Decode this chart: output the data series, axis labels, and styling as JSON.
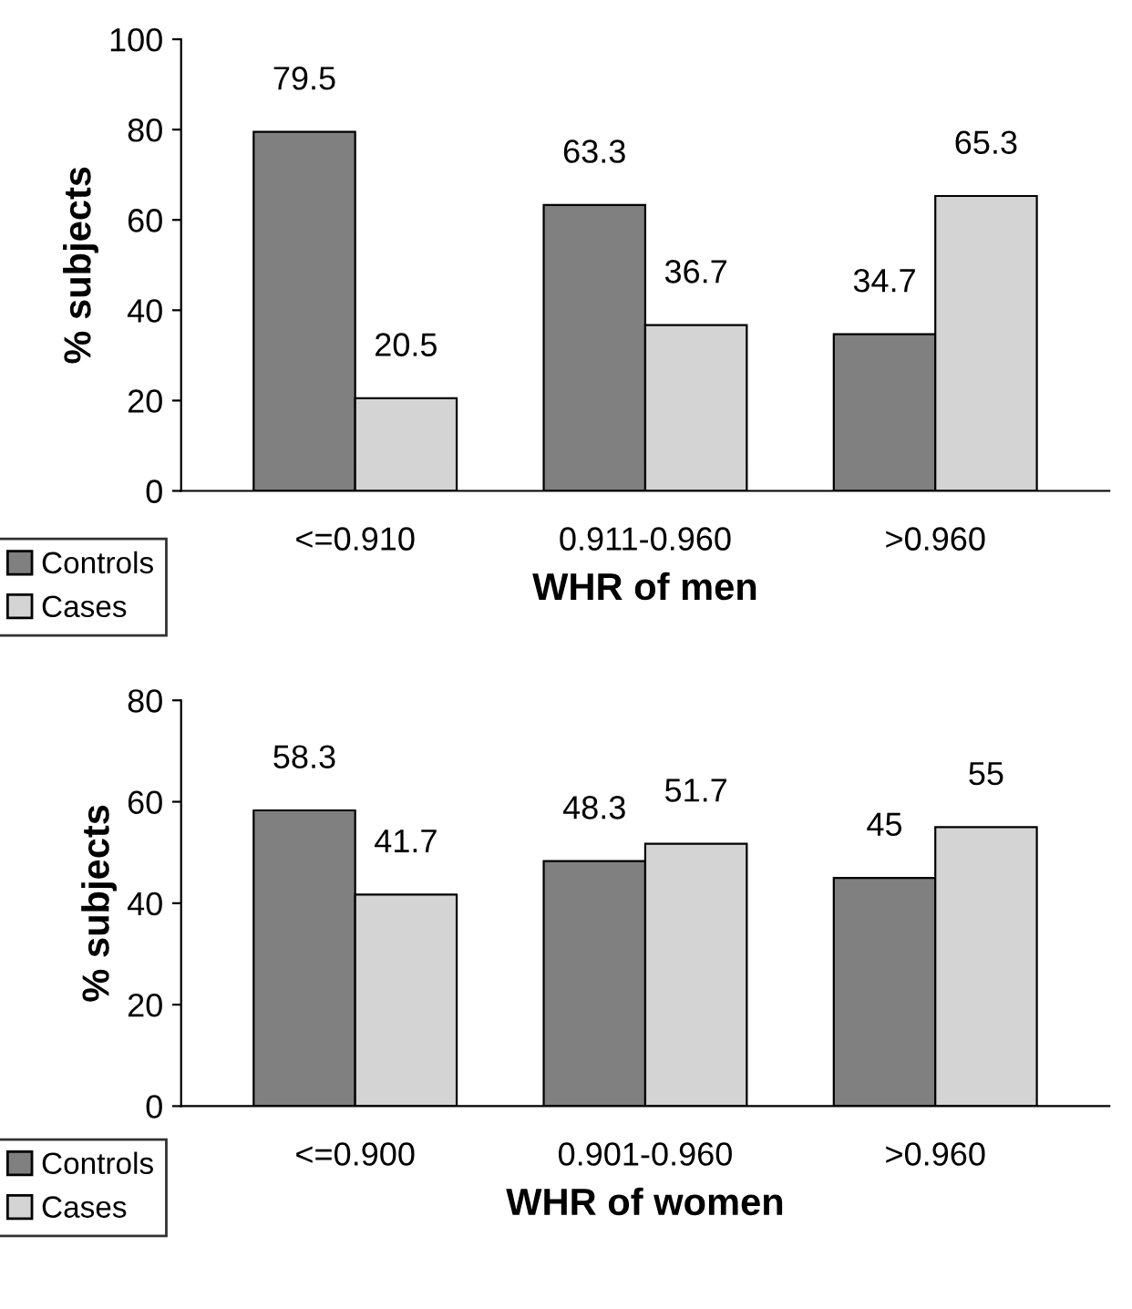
{
  "chart_data": [
    {
      "type": "bar",
      "xlabel": "WHR of men",
      "ylabel": "% subjects",
      "categories": [
        "<=0.910",
        "0.911-0.960",
        ">0.960"
      ],
      "series": [
        {
          "name": "Controls",
          "color": "#808080",
          "values": [
            79.5,
            63.3,
            34.7
          ]
        },
        {
          "name": "Cases",
          "color": "#d4d4d4",
          "values": [
            20.5,
            36.7,
            65.3
          ]
        }
      ],
      "ylim": [
        0,
        100
      ],
      "yticks": [
        0,
        20,
        40,
        60,
        80,
        100
      ],
      "data_labels": true,
      "legend": "bottom left",
      "grid": false
    },
    {
      "type": "bar",
      "xlabel": "WHR of women",
      "ylabel": "% subjects",
      "categories": [
        "<=0.900",
        "0.901-0.960",
        ">0.960"
      ],
      "series": [
        {
          "name": "Controls",
          "color": "#808080",
          "values": [
            58.3,
            48.3,
            45
          ]
        },
        {
          "name": "Cases",
          "color": "#d4d4d4",
          "values": [
            41.7,
            51.7,
            55
          ]
        }
      ],
      "ylim": [
        0,
        80
      ],
      "yticks": [
        0,
        20,
        40,
        60,
        80
      ],
      "data_labels": true,
      "legend": "bottom left",
      "grid": false
    }
  ]
}
